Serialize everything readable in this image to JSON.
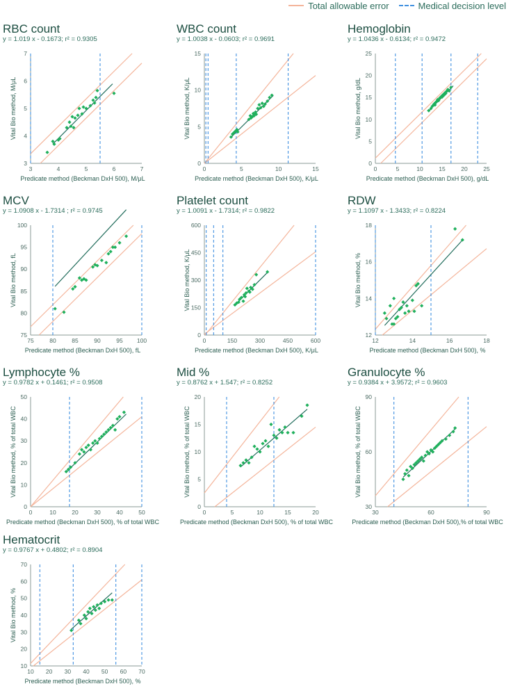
{
  "legend": {
    "tae_label": "Total allowable error",
    "mdl_label": "Medical decision level"
  },
  "colors": {
    "tae": "#f4b49a",
    "mdl": "#3f8fe0",
    "fit": "#1f6b5a",
    "point": "#1fb05c",
    "axis": "#8a9a96"
  },
  "chart_data": [
    {
      "type": "scatter",
      "title": "RBC count",
      "equation": "y = 1.019 x - 0.1673; r² = 0.9305",
      "xlabel": "Predicate method (Beckman DxH 500), M/μL",
      "ylabel": "Vital Bio method, M/μL",
      "xlim": [
        3,
        7
      ],
      "ylim": [
        3,
        7
      ],
      "xticks": [
        3,
        4,
        5,
        6,
        7
      ],
      "yticks": [
        3,
        4,
        5,
        6,
        7
      ],
      "fit": {
        "slope": 1.019,
        "intercept": -0.1673,
        "x_range": [
          3.8,
          5.95
        ]
      },
      "tae_offsets": [
        0.35,
        -0.35
      ],
      "mdl": [
        3.0,
        5.5
      ],
      "points": [
        [
          3.6,
          3.4
        ],
        [
          3.8,
          3.8
        ],
        [
          3.85,
          3.7
        ],
        [
          4.0,
          3.85
        ],
        [
          4.05,
          3.9
        ],
        [
          4.3,
          4.3
        ],
        [
          4.4,
          4.5
        ],
        [
          4.45,
          4.35
        ],
        [
          4.5,
          4.7
        ],
        [
          4.55,
          4.3
        ],
        [
          4.6,
          4.65
        ],
        [
          4.7,
          4.75
        ],
        [
          4.75,
          5.0
        ],
        [
          4.85,
          4.8
        ],
        [
          4.9,
          5.05
        ],
        [
          5.0,
          5.0
        ],
        [
          5.15,
          5.1
        ],
        [
          5.25,
          5.3
        ],
        [
          5.3,
          5.2
        ],
        [
          5.35,
          5.4
        ],
        [
          5.4,
          5.65
        ],
        [
          6.0,
          5.55
        ]
      ]
    },
    {
      "type": "scatter",
      "title": "WBC count",
      "equation": "y = 1.0038 x - 0.0603; r² = 0.9691",
      "xlabel": "Predicate method (Beckman DxH 500), K/μL",
      "ylabel": "Vital Bio method, K/μL",
      "xlim": [
        0,
        15
      ],
      "ylim": [
        0,
        15
      ],
      "xticks": [
        0,
        5,
        10,
        15
      ],
      "yticks": [
        0,
        5,
        10,
        15
      ],
      "fit": {
        "slope": 1.0038,
        "intercept": -0.0603,
        "x_range": [
          3.5,
          9.3
        ]
      },
      "tae_slopes": [
        1.25,
        0.8
      ],
      "mdl": [
        0.2,
        0.5,
        4.3,
        11.3
      ],
      "points": [
        [
          3.6,
          3.6
        ],
        [
          3.8,
          4.0
        ],
        [
          4.0,
          4.2
        ],
        [
          4.2,
          4.4
        ],
        [
          4.5,
          4.3
        ],
        [
          4.4,
          4.6
        ],
        [
          6.0,
          6.0
        ],
        [
          6.2,
          6.5
        ],
        [
          6.3,
          6.2
        ],
        [
          6.5,
          6.4
        ],
        [
          6.6,
          6.8
        ],
        [
          6.7,
          6.5
        ],
        [
          6.9,
          7.0
        ],
        [
          7.0,
          6.7
        ],
        [
          7.2,
          7.5
        ],
        [
          7.4,
          8.0
        ],
        [
          7.6,
          7.6
        ],
        [
          7.8,
          8.2
        ],
        [
          8.0,
          7.8
        ],
        [
          8.2,
          8.1
        ],
        [
          8.5,
          8.5
        ],
        [
          8.8,
          9.0
        ],
        [
          9.1,
          9.3
        ]
      ]
    },
    {
      "type": "scatter",
      "title": "Hemoglobin",
      "equation": "y = 1.0436 x - 0.6134; r² = 0.9472",
      "xlabel": "Predicate method (Beckman DxH 500), g/dL",
      "ylabel": "Vital Bio method, g/dL",
      "xlim": [
        0,
        25
      ],
      "ylim": [
        0,
        25
      ],
      "xticks": [
        0,
        5,
        10,
        15,
        20,
        25
      ],
      "yticks": [
        0,
        5,
        10,
        15,
        20,
        25
      ],
      "fit": {
        "slope": 1.0436,
        "intercept": -0.6134,
        "x_range": [
          12.0,
          17.5
        ]
      },
      "tae_offsets": [
        1.2,
        -1.2
      ],
      "mdl": [
        4.5,
        10.5,
        17.0,
        23.0
      ],
      "points": [
        [
          12.0,
          12.0
        ],
        [
          12.5,
          12.5
        ],
        [
          12.8,
          13.0
        ],
        [
          13.0,
          13.2
        ],
        [
          13.2,
          13.5
        ],
        [
          13.4,
          13.3
        ],
        [
          13.5,
          13.8
        ],
        [
          13.7,
          14.0
        ],
        [
          13.9,
          14.2
        ],
        [
          14.0,
          14.5
        ],
        [
          14.2,
          14.3
        ],
        [
          14.4,
          14.7
        ],
        [
          14.5,
          14.9
        ],
        [
          14.7,
          15.0
        ],
        [
          14.9,
          15.3
        ],
        [
          15.0,
          15.1
        ],
        [
          15.2,
          15.6
        ],
        [
          15.4,
          15.5
        ],
        [
          15.6,
          16.0
        ],
        [
          15.8,
          15.9
        ],
        [
          16.0,
          16.4
        ],
        [
          16.3,
          16.8
        ],
        [
          16.6,
          16.5
        ],
        [
          17.0,
          17.3
        ]
      ]
    },
    {
      "type": "scatter",
      "title": "MCV",
      "equation": "y = 1.0908 x - 1.7314 ; r² = 0.9745",
      "xlabel": "Predicate method (Beckman DxH 500), fL",
      "ylabel": "Vital Bio method, fL",
      "xlim": [
        75,
        100
      ],
      "ylim": [
        75,
        100
      ],
      "xticks": [
        75,
        80,
        85,
        90,
        95,
        100
      ],
      "yticks": [
        75,
        80,
        85,
        90,
        95,
        100
      ],
      "fit": {
        "slope": 1.0908,
        "intercept": -1.7314,
        "x_range": [
          80.5,
          96.5
        ]
      },
      "tae_offsets": [
        1.9,
        -1.9
      ],
      "mdl": [
        80,
        100
      ],
      "points": [
        [
          80.5,
          81.0
        ],
        [
          82.5,
          80.2
        ],
        [
          84.5,
          85.5
        ],
        [
          85.0,
          86.0
        ],
        [
          86.0,
          88.0
        ],
        [
          86.5,
          87.5
        ],
        [
          87.0,
          87.8
        ],
        [
          87.5,
          87.5
        ],
        [
          89.0,
          90.5
        ],
        [
          89.5,
          91.0
        ],
        [
          90.0,
          90.8
        ],
        [
          91.0,
          92.0
        ],
        [
          92.0,
          91.5
        ],
        [
          92.5,
          93.5
        ],
        [
          93.0,
          94.0
        ],
        [
          93.5,
          95.0
        ],
        [
          94.0,
          95.0
        ],
        [
          95.0,
          96.0
        ],
        [
          96.5,
          97.5
        ]
      ]
    },
    {
      "type": "scatter",
      "title": "Platelet count",
      "equation": "y = 1.0091 x - 1.7314; r² = 0.9822",
      "xlabel": "Predicate method (Beckman DxH 500), K/μL",
      "ylabel": "Vital Bio method, K/μL",
      "xlim": [
        0,
        600
      ],
      "ylim": [
        0,
        600
      ],
      "xticks": [
        0,
        150,
        300,
        450,
        600
      ],
      "yticks": [
        0,
        150,
        300,
        450,
        600
      ],
      "fit": {
        "slope": 1.0091,
        "intercept": -1.7314,
        "x_range": [
          160,
          340
        ]
      },
      "tae_slopes": [
        1.25,
        0.75
      ],
      "tae_pivot": 20,
      "mdl": [
        10,
        50,
        100,
        600
      ],
      "points": [
        [
          165,
          165
        ],
        [
          175,
          175
        ],
        [
          185,
          180
        ],
        [
          190,
          195
        ],
        [
          200,
          205
        ],
        [
          210,
          185
        ],
        [
          215,
          220
        ],
        [
          220,
          210
        ],
        [
          225,
          230
        ],
        [
          230,
          255
        ],
        [
          240,
          240
        ],
        [
          245,
          235
        ],
        [
          250,
          260
        ],
        [
          260,
          250
        ],
        [
          270,
          275
        ],
        [
          280,
          330
        ],
        [
          340,
          345
        ]
      ]
    },
    {
      "type": "scatter",
      "title": "RDW",
      "equation": "y = 1.1097 x - 1.3433; r² = 0.8224",
      "xlabel": "Predicate method (Beckman DxH 500), %",
      "ylabel": "Vital Bio method, %",
      "xlim": [
        12,
        18
      ],
      "ylim": [
        12,
        18
      ],
      "xticks": [
        12,
        14,
        16,
        18
      ],
      "yticks": [
        12,
        14,
        16,
        18
      ],
      "fit": {
        "slope": 1.1097,
        "intercept": -1.3433,
        "x_range": [
          12.5,
          16.7
        ]
      },
      "tae_slopes": [
        1.16,
        0.84
      ],
      "tae_pivot": 10,
      "mdl": [
        12.0,
        15.0
      ],
      "points": [
        [
          12.5,
          13.2
        ],
        [
          12.6,
          12.9
        ],
        [
          12.8,
          13.6
        ],
        [
          12.9,
          12.6
        ],
        [
          13.0,
          14.0
        ],
        [
          13.0,
          12.6
        ],
        [
          13.1,
          12.9
        ],
        [
          13.2,
          13.0
        ],
        [
          13.3,
          13.4
        ],
        [
          13.4,
          13.5
        ],
        [
          13.5,
          13.8
        ],
        [
          13.6,
          13.2
        ],
        [
          13.7,
          13.6
        ],
        [
          13.8,
          13.3
        ],
        [
          14.0,
          13.9
        ],
        [
          14.1,
          13.3
        ],
        [
          14.2,
          14.7
        ],
        [
          14.3,
          14.8
        ],
        [
          14.5,
          13.6
        ],
        [
          16.3,
          17.8
        ],
        [
          16.7,
          17.2
        ]
      ]
    },
    {
      "type": "scatter",
      "title": "Lymphocyte %",
      "equation": "y = 0.9782 x + 0.1461; r² = 0.9508",
      "xlabel": "Predicate method (Beckman DxH 500), % of total WBC",
      "ylabel": "Vital Bio method, % of total WBC",
      "xlim": [
        0,
        50
      ],
      "ylim": [
        0,
        50
      ],
      "xticks": [
        0,
        10,
        20,
        30,
        40,
        50
      ],
      "yticks": [
        0,
        10,
        20,
        30,
        40,
        50
      ],
      "fit": {
        "slope": 0.9782,
        "intercept": 0.1461,
        "x_range": [
          16,
          43
        ]
      },
      "tae_slopes": [
        1.2,
        0.82
      ],
      "mdl": [
        17.5,
        50
      ],
      "points": [
        [
          16,
          16
        ],
        [
          17,
          17
        ],
        [
          18,
          18
        ],
        [
          20,
          20
        ],
        [
          22,
          24
        ],
        [
          23,
          26
        ],
        [
          24,
          25
        ],
        [
          25,
          27
        ],
        [
          26,
          28
        ],
        [
          27,
          26
        ],
        [
          28,
          29
        ],
        [
          29,
          30
        ],
        [
          30,
          29
        ],
        [
          31,
          31
        ],
        [
          32,
          32
        ],
        [
          33,
          33
        ],
        [
          34,
          34
        ],
        [
          35,
          35
        ],
        [
          36,
          36
        ],
        [
          37,
          37
        ],
        [
          38,
          35
        ],
        [
          39,
          40
        ],
        [
          40,
          41
        ],
        [
          42,
          43
        ]
      ]
    },
    {
      "type": "scatter",
      "title": "Mid %",
      "equation": "y = 0.8762 x + 1.547; r² = 0.8252",
      "xlabel": "Predicate method (Beckman DxH 500), % of total WBC",
      "ylabel": "Vital Bio method, % of total WBC",
      "xlim": [
        0,
        20
      ],
      "ylim": [
        0,
        20
      ],
      "xticks": [
        0,
        5,
        10,
        15,
        20
      ],
      "yticks": [
        0,
        5,
        10,
        15,
        20
      ],
      "fit": {
        "slope": 0.8762,
        "intercept": 1.547,
        "x_range": [
          6.5,
          18.5
        ]
      },
      "tae_lines": [
        [
          1.3,
          2.5
        ],
        [
          0.8,
          -1.5
        ]
      ],
      "mdl": [
        4.0,
        12.5
      ],
      "points": [
        [
          6.5,
          7.5
        ],
        [
          7.0,
          8.0
        ],
        [
          7.5,
          8.5
        ],
        [
          8.0,
          8.0
        ],
        [
          8.5,
          9.0
        ],
        [
          9.0,
          11.0
        ],
        [
          9.5,
          10.5
        ],
        [
          10.0,
          10.0
        ],
        [
          10.5,
          11.5
        ],
        [
          11.0,
          12.0
        ],
        [
          11.5,
          11.0
        ],
        [
          12.0,
          15.0
        ],
        [
          12.5,
          13.0
        ],
        [
          13.0,
          12.5
        ],
        [
          13.5,
          14.0
        ],
        [
          14.0,
          13.5
        ],
        [
          14.5,
          14.5
        ],
        [
          15.0,
          13.5
        ],
        [
          16.0,
          13.5
        ],
        [
          17.5,
          16.5
        ],
        [
          18.5,
          18.5
        ]
      ]
    },
    {
      "type": "scatter",
      "title": "Granulocyte %",
      "equation": "y = 0.9384 x + 3.9572; r² = 0.9603",
      "xlabel": "Predicate method (Beckman DxH 500),% of total WBC",
      "ylabel": "Vital Bio method, % of total WBC",
      "xlim": [
        30,
        90
      ],
      "ylim": [
        30,
        90
      ],
      "xticks": [
        30,
        60,
        90
      ],
      "yticks": [
        30,
        60,
        90
      ],
      "fit": {
        "slope": 0.9384,
        "intercept": 3.9572,
        "x_range": [
          45,
          73
        ]
      },
      "tae_slopes": [
        1.2,
        0.82
      ],
      "mdl": [
        40,
        80
      ],
      "points": [
        [
          45,
          45
        ],
        [
          46,
          48
        ],
        [
          47,
          50
        ],
        [
          48,
          47
        ],
        [
          49,
          52
        ],
        [
          50,
          51
        ],
        [
          51,
          53
        ],
        [
          52,
          54
        ],
        [
          53,
          55
        ],
        [
          54,
          56
        ],
        [
          55,
          57
        ],
        [
          56,
          55
        ],
        [
          57,
          58
        ],
        [
          58,
          60
        ],
        [
          59,
          59
        ],
        [
          60,
          61
        ],
        [
          61,
          60
        ],
        [
          62,
          62
        ],
        [
          63,
          63
        ],
        [
          64,
          64
        ],
        [
          65,
          65
        ],
        [
          66,
          66
        ],
        [
          68,
          67
        ],
        [
          70,
          69
        ],
        [
          72,
          71
        ],
        [
          73,
          73
        ]
      ]
    },
    {
      "type": "scatter",
      "title": "Hematocrit",
      "equation": "y = 0.9767 x + 0.4802; r² = 0.8904",
      "xlabel": "Predicate method (Beckman DxH 500), %",
      "ylabel": "Vital Bio method, %",
      "xlim": [
        10,
        70
      ],
      "ylim": [
        10,
        70
      ],
      "xticks": [
        10,
        20,
        30,
        40,
        50,
        60,
        70
      ],
      "yticks": [
        10,
        20,
        30,
        40,
        50,
        60,
        70
      ],
      "fit": {
        "slope": 0.9767,
        "intercept": 0.4802,
        "x_range": [
          32,
          54
        ]
      },
      "tae_slopes": [
        1.15,
        0.87
      ],
      "mdl": [
        15,
        33,
        56,
        70
      ],
      "points": [
        [
          32,
          31
        ],
        [
          36,
          37
        ],
        [
          37,
          35
        ],
        [
          39,
          40
        ],
        [
          40,
          38
        ],
        [
          41,
          42
        ],
        [
          42,
          44
        ],
        [
          43,
          41
        ],
        [
          44,
          45
        ],
        [
          45,
          43
        ],
        [
          46,
          46
        ],
        [
          47,
          44
        ],
        [
          48,
          47
        ],
        [
          50,
          48
        ],
        [
          52,
          49
        ],
        [
          54,
          49
        ]
      ]
    }
  ]
}
